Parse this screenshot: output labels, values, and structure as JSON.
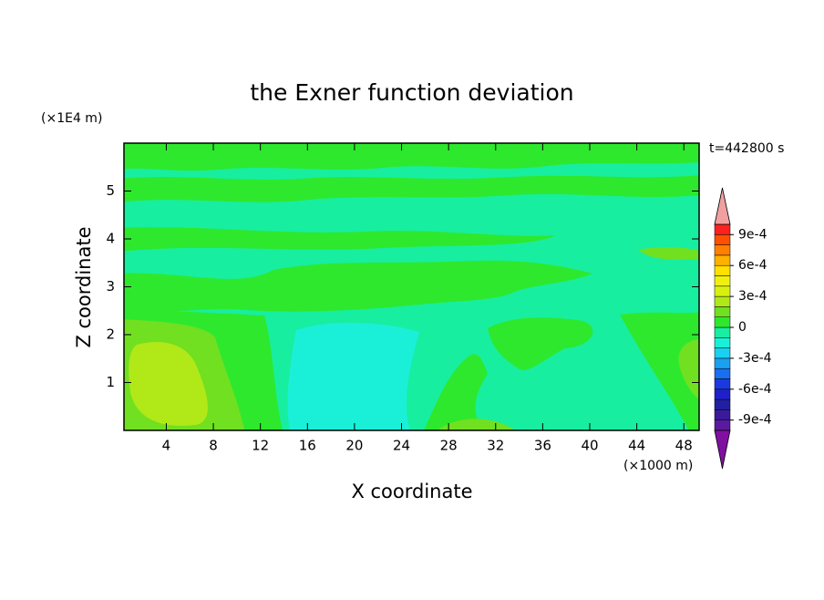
{
  "chart_data": {
    "type": "contour",
    "title": "the Exner function deviation",
    "x_label": "X coordinate",
    "y_label": "Z coordinate",
    "x_unit": "(×1000 m)",
    "y_unit": "(×1E4 m)",
    "annotation": "t=442800 s",
    "xlim": [
      0.4,
      49.3
    ],
    "xticks": [
      4,
      8,
      12,
      16,
      20,
      24,
      28,
      32,
      36,
      40,
      44,
      48
    ],
    "ylim": [
      0,
      6
    ],
    "yticks": [
      1,
      2,
      3,
      4,
      5
    ],
    "colorbar": {
      "levels": [
        -0.001,
        -0.0009,
        -0.0008,
        -0.0007,
        -0.0006,
        -0.0005,
        -0.0004,
        -0.0003,
        -0.0002,
        -0.0001,
        0,
        0.0001,
        0.0002,
        0.0003,
        0.0004,
        0.0005,
        0.0006,
        0.0007,
        0.0008,
        0.0009,
        0.001
      ],
      "colors": [
        "#5a1aa0",
        "#3a1a9a",
        "#2020a0",
        "#2020c8",
        "#1a3ae0",
        "#1a6ef0",
        "#1aa0f0",
        "#1ad0f0",
        "#1af0d8",
        "#18eea0",
        "#2ee82e",
        "#70e020",
        "#b0e818",
        "#d8f010",
        "#f0f010",
        "#ffe000",
        "#ffb000",
        "#ff8000",
        "#ff5000",
        "#ff2020"
      ],
      "extend_colors": {
        "below": "#8010a0",
        "above": "#f0a0a0"
      },
      "ticks": [
        {
          "value": -0.0009,
          "label": "-9e-4"
        },
        {
          "value": -0.0006,
          "label": "-6e-4"
        },
        {
          "value": -0.0003,
          "label": "-3e-4"
        },
        0,
        {
          "value": 0.0003,
          "label": "3e-4"
        },
        {
          "value": 0.0006,
          "label": "6e-4"
        },
        {
          "value": 0.0009,
          "label": "9e-4"
        }
      ]
    }
  }
}
